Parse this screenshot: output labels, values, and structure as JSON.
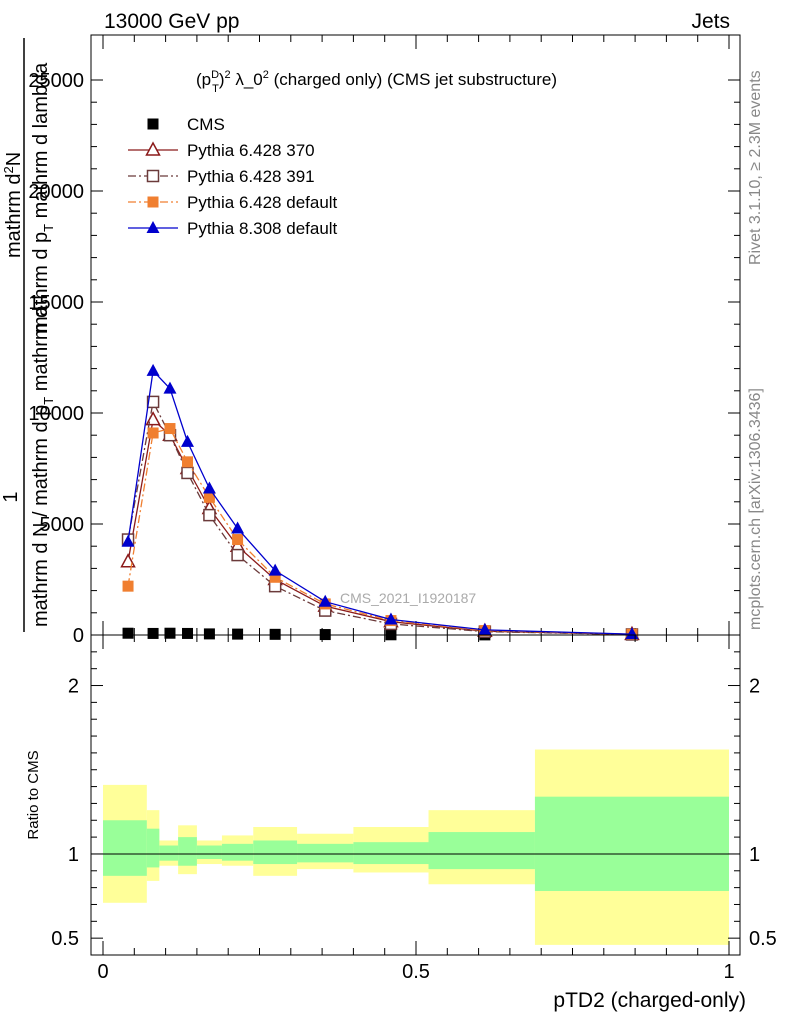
{
  "header": {
    "left": "13000 GeV pp",
    "right": "Jets"
  },
  "side_text": {
    "rivet": "Rivet 3.1.10, ≥ 2.3M events",
    "mcplots": "mcplots.cern.ch [arXiv:1306.3436]"
  },
  "watermark": "CMS_2021_I1920187",
  "chart_data": [
    {
      "type": "line",
      "panel": "main",
      "title": {
        "base": "(p",
        "sup1": "D",
        "sub1": "T",
        "mid": ")",
        "sup2": "2",
        "rest": " λ_0",
        "sup3": "2",
        "tail": " (charged only) (CMS jet substructure)"
      },
      "ylabel": {
        "line1": "1",
        "line2": "mathrm d N / mathrm d p",
        "line2_sub": "T",
        "line2_tail": " mathrm d",
        "line3": "mathrm d",
        "line3_sup": "2",
        "line3_rest": "N",
        "line4": "mathrm d p",
        "line4_sub": "T",
        "line4_rest": " mathrm d lambda"
      },
      "xlim": [
        0,
        1
      ],
      "ylim": [
        0,
        25000
      ],
      "yticks": [
        0,
        5000,
        10000,
        15000,
        20000,
        25000
      ],
      "ytick_labels": [
        "0",
        "5000",
        "10000",
        "15000",
        "20000",
        "25000"
      ],
      "legend_position": "top-left",
      "series": [
        {
          "name": "CMS",
          "color": "#000000",
          "marker": "square-filled",
          "line": "none",
          "x": [
            0.04,
            0.08,
            0.107,
            0.135,
            0.17,
            0.215,
            0.275,
            0.355,
            0.46,
            0.61,
            0.845
          ],
          "y": [
            80,
            70,
            80,
            70,
            50,
            40,
            30,
            20,
            10,
            5,
            2
          ]
        },
        {
          "name": "Pythia 6.428 370",
          "color": "#8b1a1a",
          "marker": "triangle-open",
          "line": "solid",
          "x": [
            0.04,
            0.08,
            0.107,
            0.135,
            0.17,
            0.215,
            0.275,
            0.355,
            0.46,
            0.61,
            0.845
          ],
          "y": [
            3300,
            9700,
            9000,
            7500,
            5700,
            4000,
            2500,
            1300,
            600,
            170,
            30
          ]
        },
        {
          "name": "Pythia 6.428 391",
          "color": "#6b3a3a",
          "marker": "square-open",
          "line": "dashdot",
          "x": [
            0.04,
            0.08,
            0.107,
            0.135,
            0.17,
            0.215,
            0.275,
            0.355,
            0.46,
            0.61,
            0.845
          ],
          "y": [
            4300,
            10500,
            9000,
            7300,
            5400,
            3600,
            2200,
            1100,
            500,
            150,
            25
          ]
        },
        {
          "name": "Pythia 6.428 default",
          "color": "#f07f30",
          "marker": "square-filled",
          "line": "dashdot",
          "x": [
            0.04,
            0.08,
            0.107,
            0.135,
            0.17,
            0.215,
            0.275,
            0.355,
            0.46,
            0.61,
            0.845
          ],
          "y": [
            2200,
            9100,
            9300,
            7800,
            6200,
            4300,
            2600,
            1400,
            650,
            200,
            35
          ]
        },
        {
          "name": "Pythia 8.308 default",
          "color": "#0000cd",
          "marker": "triangle-filled",
          "line": "solid",
          "x": [
            0.04,
            0.08,
            0.107,
            0.135,
            0.17,
            0.215,
            0.275,
            0.355,
            0.46,
            0.61,
            0.845
          ],
          "y": [
            4200,
            11900,
            11100,
            8700,
            6600,
            4800,
            2900,
            1500,
            700,
            230,
            40
          ]
        }
      ]
    },
    {
      "type": "area",
      "panel": "ratio",
      "ylabel": "Ratio to CMS",
      "xlabel": "pTD2 (charged-only)",
      "xlim": [
        0,
        1
      ],
      "ylim": [
        0.4,
        2.3
      ],
      "xticks": [
        0,
        0.5,
        1
      ],
      "xtick_labels": [
        "0",
        "0.5",
        "1"
      ],
      "yticks": [
        0.5,
        1,
        2
      ],
      "ytick_labels": [
        "0.5",
        "1",
        "2"
      ],
      "reference_line": 1,
      "bins": [
        0,
        0.07,
        0.09,
        0.12,
        0.15,
        0.19,
        0.24,
        0.31,
        0.4,
        0.52,
        0.69,
        1.0
      ],
      "bands": [
        {
          "name": "stat+syst",
          "color": "#ffff99",
          "low": [
            0.71,
            0.84,
            0.93,
            0.88,
            0.94,
            0.93,
            0.87,
            0.91,
            0.89,
            0.82,
            0.46
          ],
          "high": [
            1.41,
            1.26,
            1.08,
            1.17,
            1.08,
            1.11,
            1.16,
            1.12,
            1.16,
            1.26,
            1.62
          ]
        },
        {
          "name": "stat",
          "color": "#99ff99",
          "low": [
            0.87,
            0.92,
            0.96,
            0.93,
            0.97,
            0.96,
            0.94,
            0.95,
            0.94,
            0.91,
            0.78
          ],
          "high": [
            1.2,
            1.15,
            1.05,
            1.1,
            1.05,
            1.06,
            1.08,
            1.06,
            1.07,
            1.13,
            1.34
          ]
        }
      ]
    }
  ]
}
